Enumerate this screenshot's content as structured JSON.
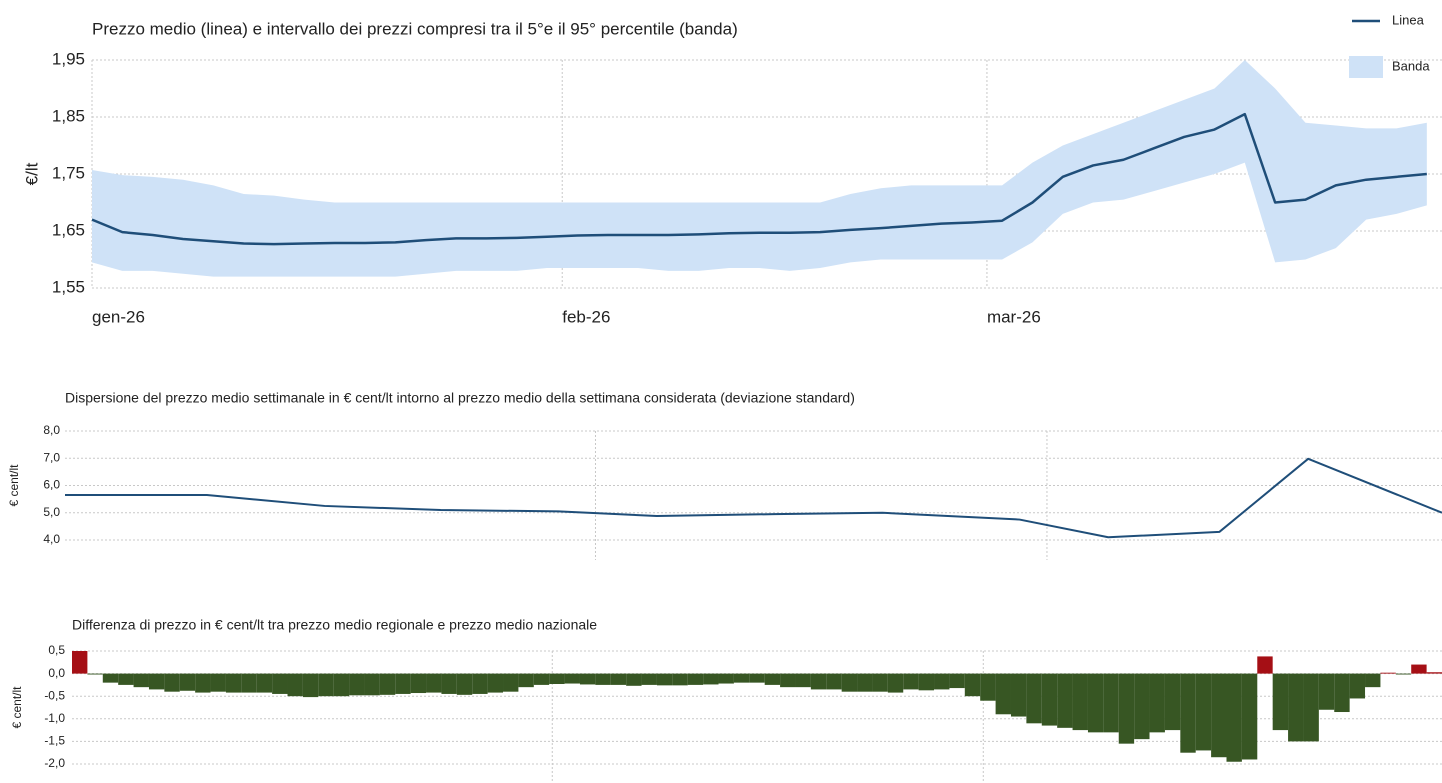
{
  "chart_data": [
    {
      "type": "line",
      "title": "Prezzo medio (linea) e intervallo dei prezzi compresi tra il 5°e il 95° percentile (banda)",
      "ylabel": "€/lt",
      "x": [
        0,
        2,
        4,
        6,
        8,
        10,
        12,
        14,
        16,
        18,
        20,
        22,
        24,
        26,
        28,
        30,
        32,
        34,
        36,
        38,
        40,
        42,
        44,
        46,
        48,
        50,
        52,
        54,
        56,
        58,
        60,
        62,
        64,
        66,
        68,
        70,
        72,
        74,
        76,
        78,
        80,
        82,
        84,
        86,
        88
      ],
      "series": [
        {
          "name": "Linea",
          "color": "#1f4e79",
          "values": [
            1.67,
            1.648,
            1.643,
            1.636,
            1.632,
            1.628,
            1.627,
            1.628,
            1.629,
            1.629,
            1.63,
            1.634,
            1.637,
            1.637,
            1.638,
            1.64,
            1.642,
            1.643,
            1.643,
            1.643,
            1.644,
            1.646,
            1.647,
            1.647,
            1.648,
            1.652,
            1.655,
            1.659,
            1.663,
            1.665,
            1.668,
            1.7,
            1.745,
            1.765,
            1.775,
            1.795,
            1.815,
            1.828,
            1.855,
            1.7,
            1.705,
            1.73,
            1.74,
            1.745,
            1.75
          ]
        }
      ],
      "band": {
        "name": "Banda",
        "color": "#cfe2f7",
        "upper": [
          1.757,
          1.748,
          1.745,
          1.74,
          1.73,
          1.715,
          1.712,
          1.705,
          1.7,
          1.7,
          1.7,
          1.7,
          1.7,
          1.7,
          1.7,
          1.7,
          1.7,
          1.7,
          1.7,
          1.7,
          1.7,
          1.7,
          1.7,
          1.7,
          1.7,
          1.715,
          1.725,
          1.73,
          1.73,
          1.73,
          1.73,
          1.77,
          1.8,
          1.82,
          1.84,
          1.86,
          1.88,
          1.9,
          1.95,
          1.9,
          1.84,
          1.835,
          1.83,
          1.83,
          1.84
        ],
        "lower": [
          1.595,
          1.58,
          1.58,
          1.575,
          1.57,
          1.57,
          1.57,
          1.57,
          1.57,
          1.57,
          1.57,
          1.575,
          1.58,
          1.58,
          1.58,
          1.585,
          1.585,
          1.585,
          1.585,
          1.58,
          1.58,
          1.585,
          1.585,
          1.58,
          1.585,
          1.595,
          1.6,
          1.6,
          1.6,
          1.6,
          1.6,
          1.63,
          1.68,
          1.7,
          1.705,
          1.72,
          1.735,
          1.75,
          1.77,
          1.595,
          1.6,
          1.62,
          1.67,
          1.68,
          1.695
        ]
      },
      "xlim": [
        0,
        89
      ],
      "xticks": [
        {
          "value": 0,
          "label": "gen-26"
        },
        {
          "value": 31,
          "label": "feb-26"
        },
        {
          "value": 59,
          "label": "mar-26"
        }
      ],
      "ylim": [
        1.55,
        1.95
      ],
      "yticks": [
        {
          "value": 1.55,
          "label": "1,55"
        },
        {
          "value": 1.65,
          "label": "1,65"
        },
        {
          "value": 1.75,
          "label": "1,75"
        },
        {
          "value": 1.85,
          "label": "1,85"
        },
        {
          "value": 1.95,
          "label": "1,95"
        }
      ],
      "grid": true,
      "legend": "top-right"
    },
    {
      "type": "line",
      "title": "Dispersione del prezzo medio settimanale in € cent/lt intorno al prezzo medio della settimana considerata (deviazione standard)",
      "ylabel": "€ cent/lt",
      "x": [
        -1.9,
        6.9,
        14.2,
        21.4,
        28.7,
        34.8,
        42.1,
        48.8,
        57.3,
        62.8,
        69.7,
        75.2,
        83.5
      ],
      "series": [
        {
          "name": null,
          "color": "#1f4e79",
          "values": [
            5.65,
            5.65,
            5.25,
            5.1,
            5.05,
            4.88,
            4.95,
            5.0,
            4.75,
            4.1,
            4.3,
            6.98,
            5.0
          ]
        }
      ],
      "xlim": [
        -1.9,
        83.5
      ],
      "xgrid": [
        31,
        59
      ],
      "ylim": [
        4.0,
        8.0
      ],
      "yticks": [
        {
          "value": 4.0,
          "label": "4,0"
        },
        {
          "value": 5.0,
          "label": "5,0"
        },
        {
          "value": 6.0,
          "label": "6,0"
        },
        {
          "value": 7.0,
          "label": "7,0"
        },
        {
          "value": 8.0,
          "label": "8,0"
        }
      ],
      "grid": true
    },
    {
      "type": "bar",
      "title": "Differenza di prezzo in € cent/lt tra prezzo medio regionale e prezzo medio nazionale",
      "ylabel": "€ cent/lt",
      "x": [
        0,
        1,
        2,
        3,
        4,
        5,
        6,
        7,
        8,
        9,
        10,
        11,
        12,
        13,
        14,
        15,
        16,
        17,
        18,
        19,
        20,
        21,
        22,
        23,
        24,
        25,
        26,
        27,
        28,
        29,
        30,
        31,
        32,
        33,
        34,
        35,
        36,
        37,
        38,
        39,
        40,
        41,
        42,
        43,
        44,
        45,
        46,
        47,
        48,
        49,
        50,
        51,
        52,
        53,
        54,
        55,
        56,
        57,
        58,
        59,
        60,
        61,
        62,
        63,
        64,
        65,
        66,
        67,
        68,
        69,
        70,
        71,
        72,
        73,
        74,
        75,
        76,
        77,
        78,
        79,
        80,
        81,
        82,
        83,
        84,
        85,
        86,
        87,
        88
      ],
      "values": [
        0.5,
        -0.02,
        -0.2,
        -0.25,
        -0.3,
        -0.35,
        -0.4,
        -0.38,
        -0.42,
        -0.4,
        -0.42,
        -0.42,
        -0.42,
        -0.45,
        -0.5,
        -0.52,
        -0.5,
        -0.5,
        -0.48,
        -0.48,
        -0.47,
        -0.45,
        -0.43,
        -0.42,
        -0.45,
        -0.47,
        -0.45,
        -0.42,
        -0.4,
        -0.3,
        -0.25,
        -0.23,
        -0.22,
        -0.24,
        -0.25,
        -0.25,
        -0.27,
        -0.25,
        -0.26,
        -0.26,
        -0.25,
        -0.24,
        -0.22,
        -0.2,
        -0.2,
        -0.25,
        -0.3,
        -0.3,
        -0.35,
        -0.35,
        -0.4,
        -0.4,
        -0.4,
        -0.42,
        -0.35,
        -0.37,
        -0.35,
        -0.32,
        -0.5,
        -0.6,
        -0.9,
        -0.95,
        -1.1,
        -1.15,
        -1.2,
        -1.25,
        -1.3,
        -1.3,
        -1.55,
        -1.45,
        -1.3,
        -1.25,
        -1.75,
        -1.7,
        -1.85,
        -1.95,
        -1.9,
        0.38,
        -1.25,
        -1.5,
        -1.5,
        -0.8,
        -0.85,
        -0.55,
        -0.3,
        0.02,
        -0.02,
        0.2,
        0.03
      ],
      "color": "#a50f15",
      "negative_color": "#375623",
      "xlim": [
        -0.5,
        88.5
      ],
      "xgrid": [
        30.7,
        58.7
      ],
      "ylim": [
        -2.0,
        0.5
      ],
      "yticks": [
        {
          "value": -2.0,
          "label": "-2,0"
        },
        {
          "value": -1.5,
          "label": "-1,5"
        },
        {
          "value": -1.0,
          "label": "-1,0"
        },
        {
          "value": -0.5,
          "label": "-0,5"
        },
        {
          "value": 0.0,
          "label": "0,0"
        },
        {
          "value": 0.5,
          "label": "0,5"
        }
      ],
      "grid": true
    }
  ]
}
